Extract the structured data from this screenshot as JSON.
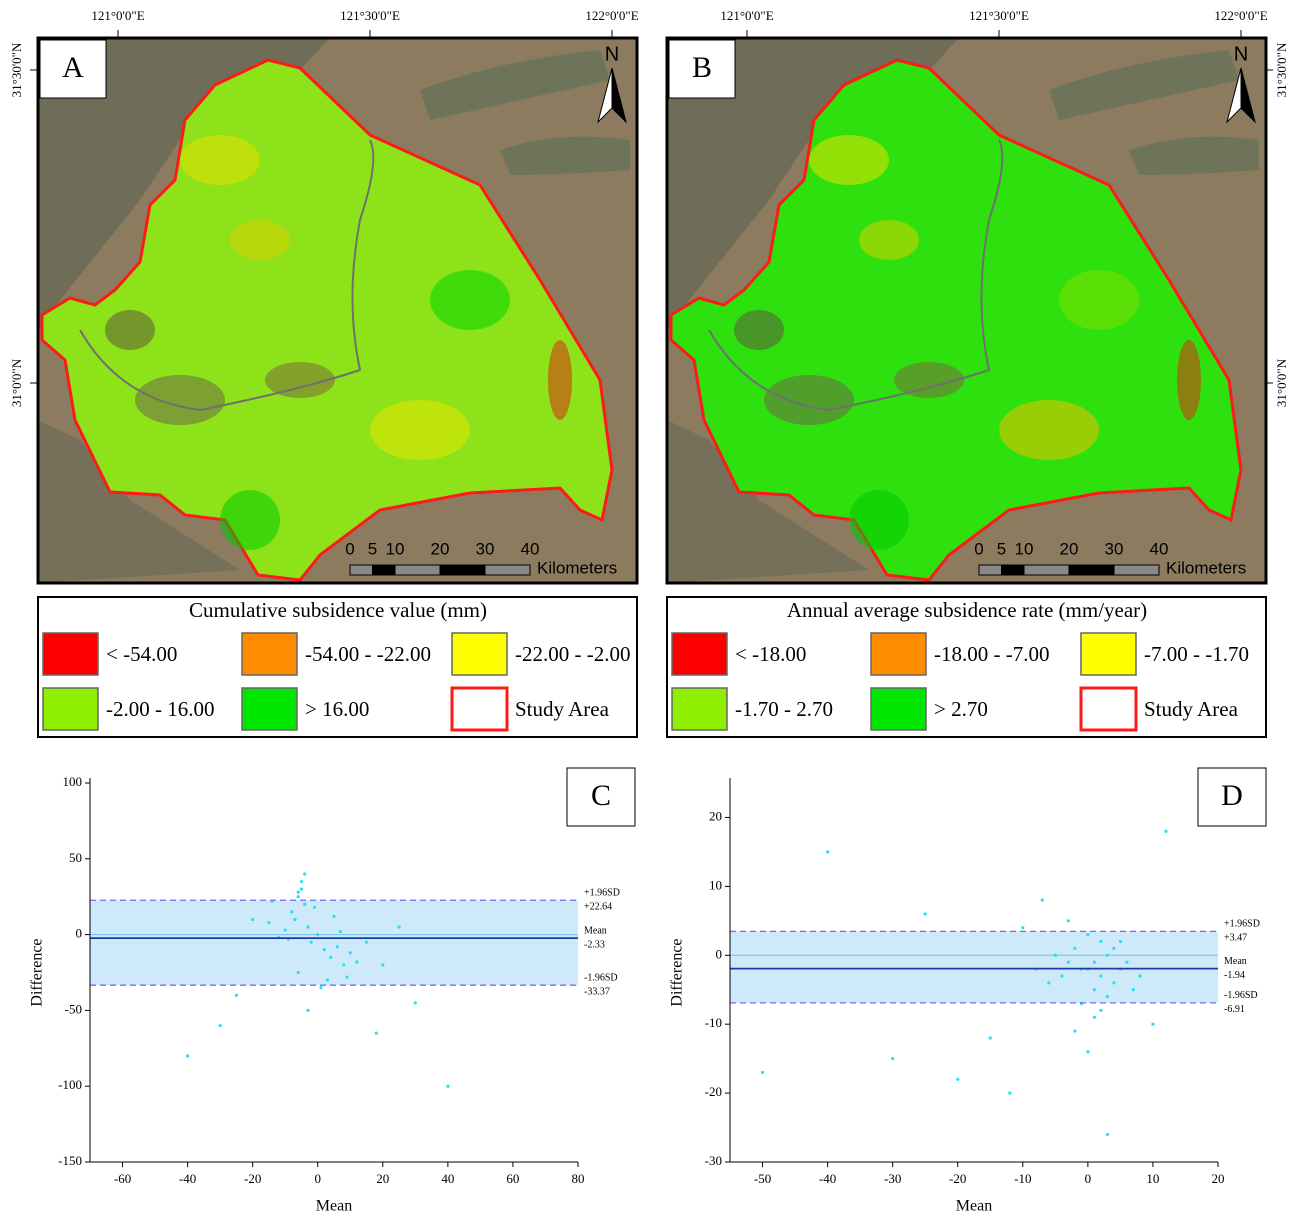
{
  "maps": [
    {
      "label": "A",
      "lon_labels": [
        "121°0'0\"E",
        "121°30'0\"E",
        "122°0'0\"E"
      ],
      "lat_labels": [
        "31°30'0\"N",
        "31°0'0\"N"
      ],
      "north": "N",
      "scale_ticks": [
        0,
        5,
        10,
        20,
        30,
        40
      ],
      "scale_unit": "Kilometers",
      "legend": {
        "title": "Cumulative subsidence value (mm)",
        "items": [
          {
            "label": "< -54.00",
            "color": "#ff0000"
          },
          {
            "label": "-54.00 - -22.00",
            "color": "#ff8c00"
          },
          {
            "label": "-22.00 - -2.00",
            "color": "#ffff00"
          },
          {
            "label": "-2.00 - 16.00",
            "color": "#90ee00"
          },
          {
            "label": "> 16.00",
            "color": "#00e600"
          },
          {
            "label": "Study Area",
            "color": "#ffffff"
          }
        ]
      }
    },
    {
      "label": "B",
      "lon_labels": [
        "121°0'0\"E",
        "121°30'0\"E",
        "122°0'0\"E"
      ],
      "lat_labels": [
        "31°30'0\"N",
        "31°0'0\"N"
      ],
      "north": "N",
      "scale_ticks": [
        0,
        5,
        10,
        20,
        30,
        40
      ],
      "scale_unit": "Kilometers",
      "legend": {
        "title": "Annual average subsidence rate (mm/year)",
        "items": [
          {
            "label": "< -18.00",
            "color": "#ff0000"
          },
          {
            "label": "-18.00 - -7.00",
            "color": "#ff8c00"
          },
          {
            "label": "-7.00 - -1.70",
            "color": "#ffff00"
          },
          {
            "label": "-1.70 - 2.70",
            "color": "#90ee00"
          },
          {
            "label": "> 2.70",
            "color": "#00e600"
          },
          {
            "label": "Study Area",
            "color": "#ffffff"
          }
        ]
      }
    }
  ],
  "chart_data": [
    {
      "type": "scatter",
      "label": "C",
      "x_label": "Mean",
      "y_label": "Difference",
      "xlim": [
        -70,
        80
      ],
      "xticks": [
        -60,
        -40,
        -20,
        0,
        20,
        40,
        60,
        80
      ],
      "ylim": [
        -150,
        100
      ],
      "yticks": [
        -150,
        -100,
        -50,
        0,
        50,
        100
      ],
      "series": [
        {
          "color": "#22e0f5",
          "x": [
            -8,
            -6,
            -5,
            -4,
            -7,
            -3,
            -2,
            0,
            2,
            4,
            6,
            8,
            10,
            -10,
            -12,
            -15,
            -5,
            -6,
            -4,
            3,
            5,
            12,
            15,
            -20,
            -25,
            20,
            25,
            -30,
            30,
            -40,
            40,
            -9,
            -1,
            1,
            7,
            -3,
            -6,
            9,
            -14,
            18
          ],
          "y": [
            15,
            25,
            30,
            20,
            10,
            5,
            -5,
            0,
            -10,
            -15,
            -8,
            -20,
            -12,
            3,
            -2,
            8,
            35,
            -25,
            40,
            -30,
            12,
            -18,
            -5,
            10,
            -40,
            -20,
            5,
            -60,
            -45,
            -80,
            -100,
            -3,
            18,
            -35,
            2,
            -50,
            28,
            -28,
            22,
            -65
          ]
        }
      ],
      "reference_lines": [
        {
          "title": "+1.96SD",
          "value": 22.64,
          "value_label": "+22.64"
        },
        {
          "title": "Mean",
          "value": -2.33
        },
        {
          "title": "-1.96SD",
          "value": -33.37
        }
      ]
    },
    {
      "type": "scatter",
      "label": "D",
      "x_label": "Mean",
      "y_label": "Difference",
      "xlim": [
        -55,
        20
      ],
      "xticks": [
        -50,
        -40,
        -30,
        -20,
        -10,
        0,
        10,
        20
      ],
      "ylim": [
        -30,
        25
      ],
      "yticks": [
        -30,
        -20,
        -10,
        0,
        10,
        20
      ],
      "series": [
        {
          "color": "#22e0f5",
          "x": [
            0,
            1,
            2,
            3,
            -1,
            -2,
            4,
            5,
            -3,
            -4,
            1,
            2,
            6,
            -5,
            -6,
            3,
            0,
            -1,
            2,
            4,
            -8,
            -10,
            8,
            -15,
            -20,
            10,
            -25,
            -30,
            -40,
            -50,
            1,
            -2,
            5,
            7,
            -3,
            3,
            -12,
            12,
            0,
            -7
          ],
          "y": [
            -2,
            -1,
            -3,
            0,
            -2,
            1,
            -4,
            -2,
            -1,
            -3,
            -5,
            2,
            -1,
            0,
            -4,
            -6,
            3,
            -7,
            -8,
            1,
            -2,
            4,
            -3,
            -12,
            -18,
            -10,
            6,
            -15,
            15,
            -17,
            -9,
            -11,
            2,
            -5,
            5,
            -26,
            -20,
            18,
            -14,
            8
          ]
        }
      ],
      "reference_lines": [
        {
          "title": "+1.96SD",
          "value": 3.47,
          "value_label": "+3.47"
        },
        {
          "title": "Mean",
          "value": -1.94
        },
        {
          "title": "-1.96SD",
          "value": -6.91
        }
      ]
    }
  ]
}
